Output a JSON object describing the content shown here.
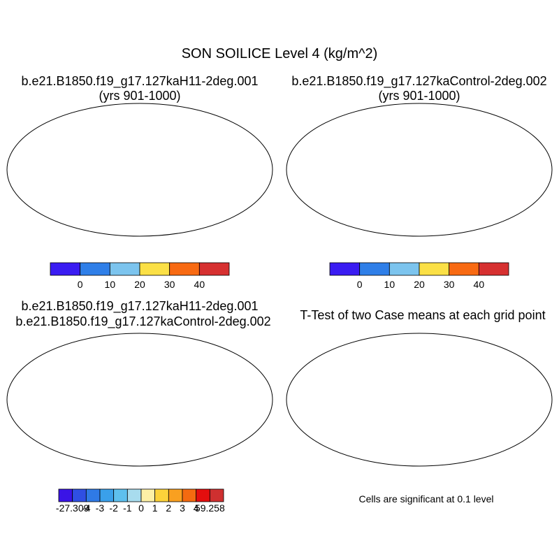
{
  "figure": {
    "title": "SON SOILICE Level 4 (kg/m^2)"
  },
  "panels": {
    "top_left": {
      "title": "b.e21.B1850.f19_g17.127kaH11-2deg.001",
      "subtitle": "(yrs 901-1000)"
    },
    "top_right": {
      "title": "b.e21.B1850.f19_g17.127kaControl-2deg.002",
      "subtitle": "(yrs 901-1000)"
    },
    "bottom_left": {
      "title_line1": "b.e21.B1850.f19_g17.127kaH11-2deg.001",
      "title_line2": "b.e21.B1850.f19_g17.127kaControl-2deg.002"
    },
    "bottom_right": {
      "title": "T-Test of two Case means at each grid point",
      "note": "Cells are significant at 0.1 level"
    }
  },
  "colorbars": {
    "case": {
      "colors": [
        "#3a1cf2",
        "#2f7fe8",
        "#7cc4ee",
        "#fbe046",
        "#f86a12",
        "#d63030"
      ],
      "labels": [
        "0",
        "10",
        "20",
        "30",
        "40"
      ]
    },
    "diff": {
      "colors": [
        "#3a14e6",
        "#2f4fe3",
        "#2f7ae6",
        "#3aa0ea",
        "#5ec0ee",
        "#a8dcee",
        "#fdf0a6",
        "#fcd23a",
        "#f9a020",
        "#f46a10",
        "#e40e0e",
        "#cf3030"
      ],
      "labels": [
        "-27.309",
        "-4",
        "-3",
        "-2",
        "-1",
        "0",
        "1",
        "2",
        "3",
        "4",
        "59.258"
      ]
    }
  },
  "map_colors": {
    "land_case": "#2f7fe8",
    "polar_case": "#d63030",
    "land_diff": "#fdf0a6",
    "polar_diff": "#cf3030",
    "significant": "#ee0000"
  }
}
